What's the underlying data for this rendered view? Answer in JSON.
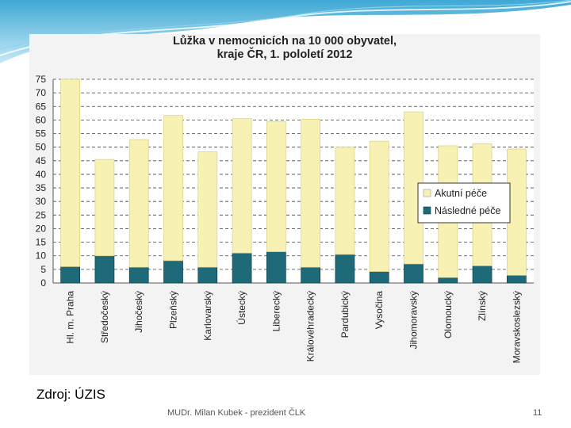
{
  "chart_data": {
    "type": "bar",
    "stacked": true,
    "title_line1": "Lůžka v nemocnicích na 10 000 obyvatel,",
    "title_line2": "kraje ČR, 1. pololetí 2012",
    "xlabel": "",
    "ylabel": "",
    "ylim": [
      0,
      75
    ],
    "yticks": [
      0,
      5,
      10,
      15,
      20,
      25,
      30,
      35,
      40,
      45,
      50,
      55,
      60,
      65,
      70,
      75
    ],
    "categories": [
      "Hl. m. Praha",
      "Středočeský",
      "Jihočeský",
      "Plzeňský",
      "Karlovarský",
      "Ústecký",
      "Liberecký",
      "Královéhradecký",
      "Pardubický",
      "Vysočina",
      "Jihomoravský",
      "Olomoucký",
      "Zlínský",
      "Moravskoslezský"
    ],
    "series": [
      {
        "name": "Akutní péče",
        "color": "#f8f1b4",
        "values": [
          69,
          35.5,
          47,
          53.5,
          42.5,
          49.5,
          48,
          54.5,
          39.5,
          48,
          56,
          48.5,
          45,
          46.5
        ]
      },
      {
        "name": "Následné péče",
        "color": "#1f6a78",
        "values": [
          6,
          10,
          5.8,
          8.2,
          5.8,
          11,
          11.5,
          5.8,
          10.5,
          4.2,
          7,
          2,
          6.3,
          2.8
        ]
      }
    ],
    "legend_position": "middle-right",
    "grid": "dashed horizontal"
  },
  "source_text": "Zdroj: ÚZIS",
  "footer_text": "MUDr. Milan Kubek - prezident ČLK",
  "page_number": "11"
}
